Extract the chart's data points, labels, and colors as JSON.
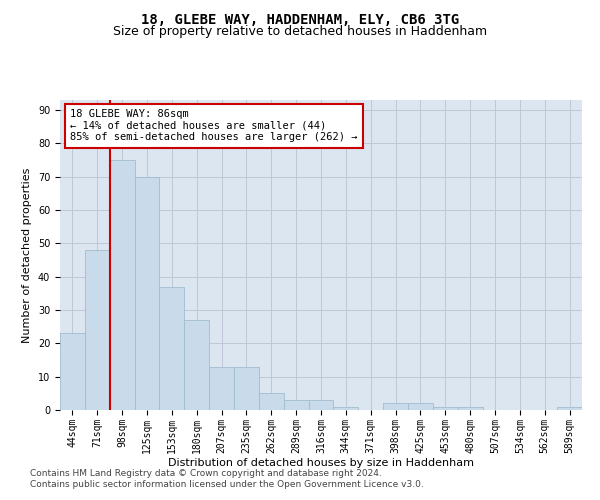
{
  "title": "18, GLEBE WAY, HADDENHAM, ELY, CB6 3TG",
  "subtitle": "Size of property relative to detached houses in Haddenham",
  "xlabel": "Distribution of detached houses by size in Haddenham",
  "ylabel": "Number of detached properties",
  "categories": [
    "44sqm",
    "71sqm",
    "98sqm",
    "125sqm",
    "153sqm",
    "180sqm",
    "207sqm",
    "235sqm",
    "262sqm",
    "289sqm",
    "316sqm",
    "344sqm",
    "371sqm",
    "398sqm",
    "425sqm",
    "453sqm",
    "480sqm",
    "507sqm",
    "534sqm",
    "562sqm",
    "589sqm"
  ],
  "values": [
    23,
    48,
    75,
    70,
    37,
    27,
    13,
    13,
    5,
    3,
    3,
    1,
    0,
    2,
    2,
    1,
    1,
    0,
    0,
    0,
    1
  ],
  "bar_color": "#c9daea",
  "bar_edge_color": "#a0bdd0",
  "reference_line_x": 1.5,
  "reference_line_color": "#cc0000",
  "annotation_text": "18 GLEBE WAY: 86sqm\n← 14% of detached houses are smaller (44)\n85% of semi-detached houses are larger (262) →",
  "annotation_box_color": "white",
  "annotation_box_edge_color": "#cc0000",
  "ylim": [
    0,
    93
  ],
  "yticks": [
    0,
    10,
    20,
    30,
    40,
    50,
    60,
    70,
    80,
    90
  ],
  "grid_color": "#c0c8d8",
  "bg_color": "#dce6f0",
  "footer_line1": "Contains HM Land Registry data © Crown copyright and database right 2024.",
  "footer_line2": "Contains public sector information licensed under the Open Government Licence v3.0.",
  "title_fontsize": 10,
  "subtitle_fontsize": 9,
  "axis_label_fontsize": 8,
  "tick_fontsize": 7,
  "annotation_fontsize": 7.5,
  "footer_fontsize": 6.5
}
